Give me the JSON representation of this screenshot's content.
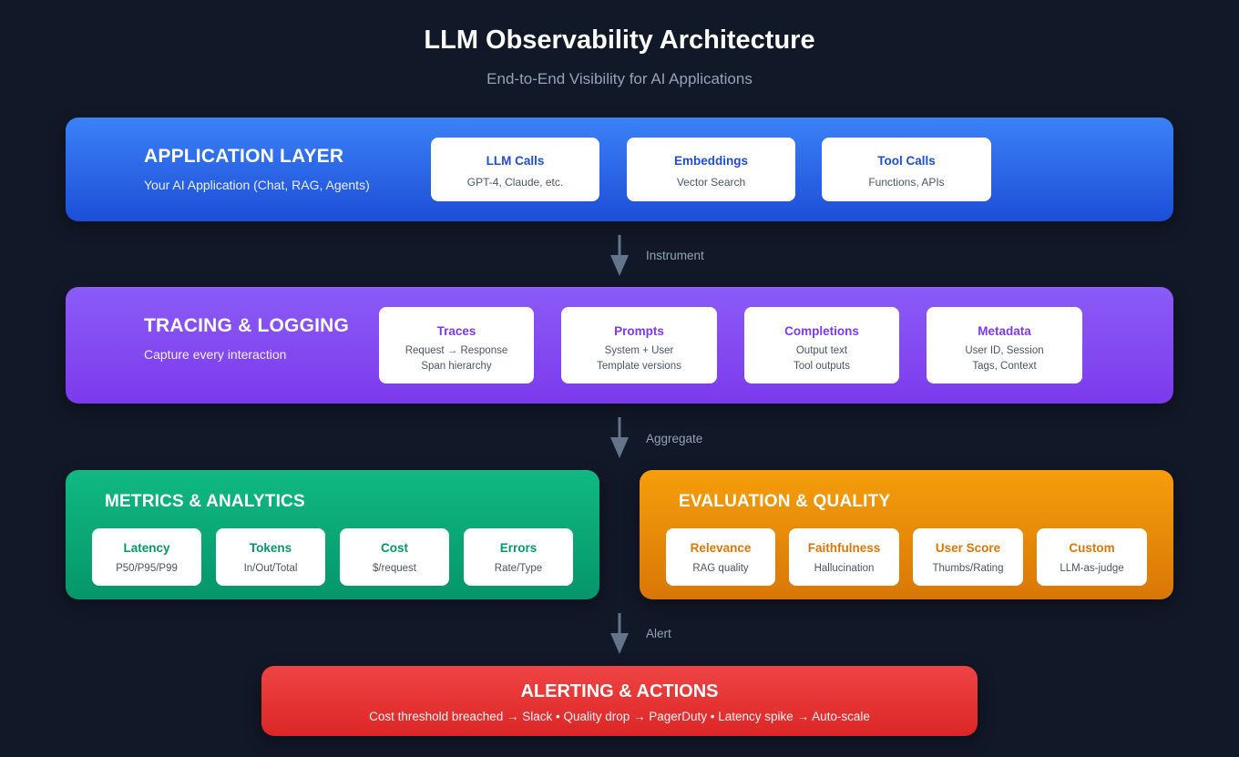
{
  "title": "LLM Observability Architecture",
  "subtitle": "End-to-End Visibility for AI Applications",
  "colors": {
    "background": "#111827",
    "application": "#3b82f6",
    "tracing": "#8b5cf6",
    "metrics": "#10b981",
    "evaluation": "#f59e0b",
    "alerting": "#ef4444",
    "arrow": "#64748b"
  },
  "application": {
    "title": "APPLICATION LAYER",
    "subtitle": "Your AI Application (Chat, RAG, Agents)",
    "cards": [
      {
        "title": "LLM Calls",
        "lines": [
          "GPT-4, Claude, etc."
        ]
      },
      {
        "title": "Embeddings",
        "lines": [
          "Vector Search"
        ]
      },
      {
        "title": "Tool Calls",
        "lines": [
          "Functions, APIs"
        ]
      }
    ]
  },
  "arrows": [
    {
      "label": "Instrument",
      "icon": "arrow-down"
    },
    {
      "label": "Aggregate",
      "icon": "arrow-down"
    },
    {
      "label": "Alert",
      "icon": "arrow-down"
    }
  ],
  "tracing": {
    "title": "TRACING & LOGGING",
    "subtitle": "Capture every interaction",
    "cards": [
      {
        "title": "Traces",
        "lines": [
          "Request → Response",
          "Span hierarchy"
        ]
      },
      {
        "title": "Prompts",
        "lines": [
          "System + User",
          "Template versions"
        ]
      },
      {
        "title": "Completions",
        "lines": [
          "Output text",
          "Tool outputs"
        ]
      },
      {
        "title": "Metadata",
        "lines": [
          "User ID, Session",
          "Tags, Context"
        ]
      }
    ]
  },
  "metrics": {
    "title": "METRICS & ANALYTICS",
    "cards": [
      {
        "title": "Latency",
        "lines": [
          "P50/P95/P99"
        ]
      },
      {
        "title": "Tokens",
        "lines": [
          "In/Out/Total"
        ]
      },
      {
        "title": "Cost",
        "lines": [
          "$/request"
        ]
      },
      {
        "title": "Errors",
        "lines": [
          "Rate/Type"
        ]
      }
    ]
  },
  "evaluation": {
    "title": "EVALUATION & QUALITY",
    "cards": [
      {
        "title": "Relevance",
        "lines": [
          "RAG quality"
        ]
      },
      {
        "title": "Faithfulness",
        "lines": [
          "Hallucination"
        ]
      },
      {
        "title": "User Score",
        "lines": [
          "Thumbs/Rating"
        ]
      },
      {
        "title": "Custom",
        "lines": [
          "LLM-as-judge"
        ]
      }
    ]
  },
  "alerting": {
    "title": "ALERTING & ACTIONS",
    "subtitle": "Cost threshold breached → Slack • Quality drop → PagerDuty • Latency spike → Auto-scale"
  }
}
